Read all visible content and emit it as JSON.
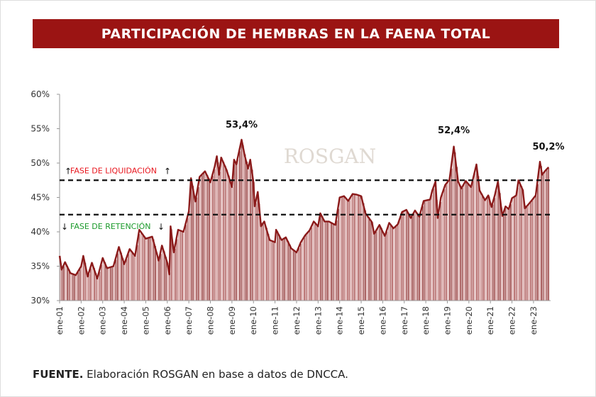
{
  "title": "PARTICIPACIÓN DE HEMBRAS EN LA FAENA TOTAL",
  "footer": {
    "label": "FUENTE.",
    "text": " Elaboración ROSGAN en base a datos de DNCCA."
  },
  "watermark": "ROSGAN",
  "colors": {
    "title_bg": "#9b1413",
    "line": "#8b1a1a",
    "bar_dark": "#a65a5a",
    "bar_light": "#dcb0b0",
    "liquidacion": "#e8141c",
    "retencion": "#1a9a2a"
  },
  "chart_data": {
    "type": "area",
    "title": "PARTICIPACIÓN DE HEMBRAS EN LA FAENA TOTAL",
    "xlabel": "",
    "ylabel": "",
    "ylim": [
      30,
      60
    ],
    "yticks": [
      "30%",
      "35%",
      "40%",
      "45%",
      "50%",
      "55%",
      "60%"
    ],
    "ytick_values": [
      30,
      35,
      40,
      45,
      50,
      55,
      60
    ],
    "xticks": [
      "ene-01",
      "ene-02",
      "ene-03",
      "ene-04",
      "ene-05",
      "ene-06",
      "ene-07",
      "ene-08",
      "ene-09",
      "ene-10",
      "ene-11",
      "ene-12",
      "ene-13",
      "ene-14",
      "ene-15",
      "ene-16",
      "ene-17",
      "ene-18",
      "ene-19",
      "ene-20",
      "ene-21",
      "ene-22",
      "ene-23"
    ],
    "xtick_years": [
      2001,
      2002,
      2003,
      2004,
      2005,
      2006,
      2007,
      2008,
      2009,
      2010,
      2011,
      2012,
      2013,
      2014,
      2015,
      2016,
      2017,
      2018,
      2019,
      2020,
      2021,
      2022,
      2023
    ],
    "xlim": [
      2001,
      2023.75
    ],
    "thresholds": [
      {
        "label": "FASE DE LIQUIDACIÓN",
        "value": 47.5
      },
      {
        "label": "FASE DE RETENCIÓN",
        "value": 42.5
      }
    ],
    "annotations": [
      {
        "text": "53,4%",
        "x": 2009.45,
        "y": 53.4
      },
      {
        "text": "52,4%",
        "x": 2019.3,
        "y": 52.4
      },
      {
        "text": "50,2%",
        "x": 2023.3,
        "y": 50.2
      }
    ],
    "series": [
      {
        "name": "Participación de hembras (%)",
        "points": [
          [
            2001.0,
            36.5
          ],
          [
            2001.1,
            34.5
          ],
          [
            2001.25,
            35.6
          ],
          [
            2001.5,
            34
          ],
          [
            2001.75,
            33.7
          ],
          [
            2002.0,
            35
          ],
          [
            2002.1,
            36.5
          ],
          [
            2002.3,
            33.5
          ],
          [
            2002.5,
            35.5
          ],
          [
            2002.75,
            33.2
          ],
          [
            2003.0,
            36.2
          ],
          [
            2003.2,
            34.7
          ],
          [
            2003.5,
            35
          ],
          [
            2003.75,
            37.8
          ],
          [
            2004.0,
            35.3
          ],
          [
            2004.25,
            37.5
          ],
          [
            2004.5,
            36.5
          ],
          [
            2004.7,
            40.3
          ],
          [
            2005.0,
            39
          ],
          [
            2005.3,
            39.3
          ],
          [
            2005.6,
            35.8
          ],
          [
            2005.75,
            38
          ],
          [
            2006.0,
            35.5
          ],
          [
            2006.1,
            33.8
          ],
          [
            2006.15,
            40.8
          ],
          [
            2006.3,
            37
          ],
          [
            2006.5,
            40.3
          ],
          [
            2006.75,
            40
          ],
          [
            2007.0,
            43
          ],
          [
            2007.1,
            47.8
          ],
          [
            2007.3,
            44.4
          ],
          [
            2007.5,
            48
          ],
          [
            2007.75,
            48.8
          ],
          [
            2008.0,
            47.2
          ],
          [
            2008.2,
            49.5
          ],
          [
            2008.3,
            51
          ],
          [
            2008.4,
            48.3
          ],
          [
            2008.5,
            50.8
          ],
          [
            2008.75,
            49
          ],
          [
            2009.0,
            46.5
          ],
          [
            2009.1,
            50.5
          ],
          [
            2009.2,
            49.8
          ],
          [
            2009.45,
            53.4
          ],
          [
            2009.6,
            51
          ],
          [
            2009.75,
            49.2
          ],
          [
            2009.85,
            50.5
          ],
          [
            2010.0,
            47.2
          ],
          [
            2010.05,
            43.7
          ],
          [
            2010.2,
            45.8
          ],
          [
            2010.35,
            40.8
          ],
          [
            2010.5,
            41.5
          ],
          [
            2010.75,
            38.8
          ],
          [
            2011.0,
            38.5
          ],
          [
            2011.05,
            40.3
          ],
          [
            2011.3,
            38.8
          ],
          [
            2011.5,
            39.2
          ],
          [
            2011.75,
            37.6
          ],
          [
            2012.0,
            37
          ],
          [
            2012.2,
            38.5
          ],
          [
            2012.4,
            39.5
          ],
          [
            2012.6,
            40.2
          ],
          [
            2012.8,
            41.5
          ],
          [
            2013.0,
            40.8
          ],
          [
            2013.1,
            42.7
          ],
          [
            2013.3,
            41.5
          ],
          [
            2013.5,
            41.5
          ],
          [
            2013.8,
            41
          ],
          [
            2014.0,
            45
          ],
          [
            2014.2,
            45.2
          ],
          [
            2014.4,
            44.5
          ],
          [
            2014.6,
            45.5
          ],
          [
            2014.8,
            45.4
          ],
          [
            2015.0,
            45.2
          ],
          [
            2015.2,
            42.7
          ],
          [
            2015.5,
            41.4
          ],
          [
            2015.6,
            39.7
          ],
          [
            2015.85,
            41
          ],
          [
            2016.0,
            40
          ],
          [
            2016.1,
            39.4
          ],
          [
            2016.3,
            41.3
          ],
          [
            2016.5,
            40.5
          ],
          [
            2016.7,
            41.1
          ],
          [
            2016.9,
            42.9
          ],
          [
            2017.1,
            43.2
          ],
          [
            2017.3,
            42
          ],
          [
            2017.5,
            43.1
          ],
          [
            2017.7,
            42.2
          ],
          [
            2017.9,
            44.5
          ],
          [
            2018.2,
            44.7
          ],
          [
            2018.3,
            46
          ],
          [
            2018.45,
            47.3
          ],
          [
            2018.55,
            42
          ],
          [
            2018.7,
            45
          ],
          [
            2018.9,
            46.8
          ],
          [
            2019.1,
            47.6
          ],
          [
            2019.3,
            52.4
          ],
          [
            2019.5,
            47.3
          ],
          [
            2019.65,
            46.3
          ],
          [
            2019.85,
            47.4
          ],
          [
            2020.1,
            46.5
          ],
          [
            2020.35,
            49.8
          ],
          [
            2020.5,
            46
          ],
          [
            2020.75,
            44.6
          ],
          [
            2020.9,
            45.3
          ],
          [
            2021.05,
            43.6
          ],
          [
            2021.2,
            45.3
          ],
          [
            2021.35,
            47.3
          ],
          [
            2021.55,
            42.3
          ],
          [
            2021.7,
            43.7
          ],
          [
            2021.85,
            43.3
          ],
          [
            2022.0,
            44.9
          ],
          [
            2022.2,
            45.3
          ],
          [
            2022.3,
            47.5
          ],
          [
            2022.5,
            46.1
          ],
          [
            2022.6,
            43.4
          ],
          [
            2022.9,
            44.5
          ],
          [
            2023.1,
            45.3
          ],
          [
            2023.3,
            50.2
          ],
          [
            2023.4,
            48.3
          ],
          [
            2023.55,
            48.9
          ],
          [
            2023.7,
            49.4
          ]
        ]
      }
    ]
  }
}
